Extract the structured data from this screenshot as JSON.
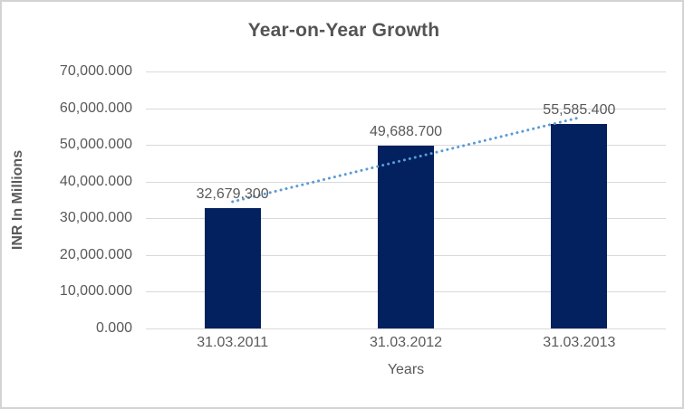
{
  "chart_data": {
    "type": "bar",
    "title": "Year-on-Year Growth",
    "xlabel": "Years",
    "ylabel": "INR In Millions",
    "categories": [
      "31.03.2011",
      "31.03.2012",
      "31.03.2013"
    ],
    "values": [
      32679.3,
      49688.7,
      55585.4
    ],
    "data_labels": [
      "32,679.300",
      "49,688.700",
      "55,585.400"
    ],
    "ylim": [
      0,
      70000
    ],
    "ytick_step": 10000,
    "ytick_labels": [
      "0.000",
      "10,000.000",
      "20,000.000",
      "30,000.000",
      "40,000.000",
      "50,000.000",
      "60,000.000",
      "70,000.000"
    ],
    "grid": true,
    "legend": "none",
    "trendline": "linear-dotted",
    "colors": {
      "bar": "#02215e",
      "trendline": "#5b9bd5",
      "gridline": "#d9d9d9",
      "axis_text": "#595959",
      "title_text": "#545454",
      "frame_border": "#d3d3d3",
      "background": "#ffffff"
    }
  }
}
